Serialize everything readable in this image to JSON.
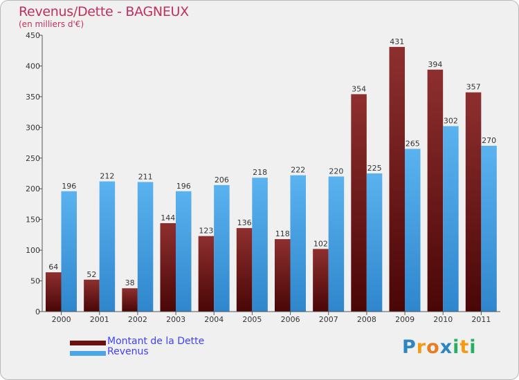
{
  "chart_data": {
    "type": "bar",
    "title": "Revenus/Dette - BAGNEUX",
    "subtitle": "(en milliers d'€)",
    "categories": [
      "2000",
      "2001",
      "2002",
      "2003",
      "2004",
      "2005",
      "2006",
      "2007",
      "2008",
      "2009",
      "2010",
      "2011"
    ],
    "series": [
      {
        "name": "Montant de la Dette",
        "color": "#7a1c1c",
        "values": [
          64,
          52,
          38,
          144,
          123,
          136,
          118,
          102,
          354,
          431,
          394,
          357
        ]
      },
      {
        "name": "Revenus",
        "color": "#4aa6e6",
        "values": [
          196,
          212,
          211,
          196,
          206,
          218,
          222,
          220,
          225,
          265,
          302,
          270
        ]
      }
    ],
    "ylim": [
      0,
      450
    ],
    "yticks": [
      0,
      50,
      100,
      150,
      200,
      250,
      300,
      350,
      400,
      450
    ],
    "grid": false,
    "xlabel": "",
    "ylabel": "",
    "legend_position": "bottom-left"
  },
  "logo": {
    "letters": [
      "P",
      "r",
      "o",
      "x",
      "i",
      "t",
      "i"
    ],
    "colors": [
      "#2e86c1",
      "#f39c12",
      "#e67e22",
      "#2e86c1",
      "#27ae60",
      "#f39c12",
      "#27ae60"
    ]
  }
}
